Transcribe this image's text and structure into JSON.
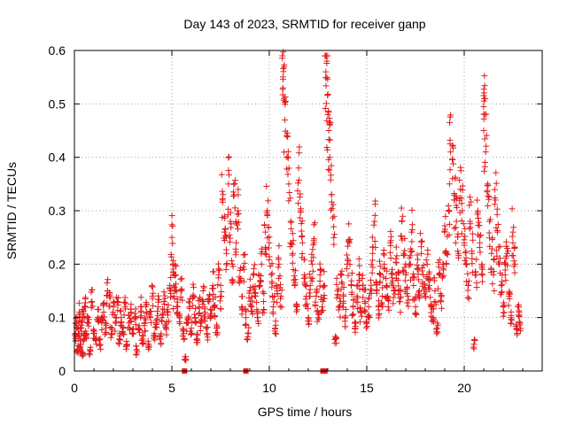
{
  "chart_data": {
    "type": "scatter",
    "title": "Day 143 of 2023, SRMTID for receiver ganp",
    "xlabel": "GPS time / hours",
    "ylabel": "SRMTID / TECUs",
    "xlim": [
      0,
      24
    ],
    "ylim": [
      0,
      0.6
    ],
    "x_ticks": [
      0,
      5,
      10,
      15,
      20
    ],
    "x_tick_labels": [
      "0",
      "5",
      "10",
      "15",
      "20"
    ],
    "y_ticks": [
      0,
      0.1,
      0.2,
      0.3,
      0.4,
      0.5,
      0.6
    ],
    "y_tick_labels": [
      "0",
      "0.1",
      "0.2",
      "0.3",
      "0.4",
      "0.5",
      "0.6"
    ],
    "grid": true,
    "marker": "+",
    "color": "#e41a1c",
    "baseline_markers_x": [
      5.65,
      8.8,
      12.75,
      12.85
    ],
    "series": [
      {
        "name": "SRMTID",
        "points": [
          [
            0.05,
            0.06
          ],
          [
            0.1,
            0.09
          ],
          [
            0.15,
            0.04
          ],
          [
            0.2,
            0.07
          ],
          [
            0.25,
            0.11
          ],
          [
            0.3,
            0.05
          ],
          [
            0.35,
            0.08
          ],
          [
            0.4,
            0.03
          ],
          [
            0.45,
            0.1
          ],
          [
            0.5,
            0.06
          ],
          [
            0.55,
            0.12
          ],
          [
            0.6,
            0.07
          ],
          [
            0.7,
            0.09
          ],
          [
            0.8,
            0.04
          ],
          [
            0.9,
            0.13
          ],
          [
            1.0,
            0.07
          ],
          [
            1.1,
            0.06
          ],
          [
            1.2,
            0.1
          ],
          [
            1.3,
            0.05
          ],
          [
            1.4,
            0.09
          ],
          [
            1.5,
            0.11
          ],
          [
            1.6,
            0.08
          ],
          [
            1.7,
            0.15
          ],
          [
            1.8,
            0.14
          ],
          [
            1.9,
            0.07
          ],
          [
            2.0,
            0.12
          ],
          [
            2.1,
            0.09
          ],
          [
            2.2,
            0.13
          ],
          [
            2.3,
            0.06
          ],
          [
            2.4,
            0.1
          ],
          [
            2.5,
            0.08
          ],
          [
            2.6,
            0.12
          ],
          [
            2.7,
            0.05
          ],
          [
            2.8,
            0.09
          ],
          [
            2.9,
            0.11
          ],
          [
            3.0,
            0.07
          ],
          [
            3.1,
            0.1
          ],
          [
            3.2,
            0.04
          ],
          [
            3.3,
            0.08
          ],
          [
            3.4,
            0.12
          ],
          [
            3.5,
            0.06
          ],
          [
            3.6,
            0.09
          ],
          [
            3.7,
            0.11
          ],
          [
            3.8,
            0.05
          ],
          [
            3.9,
            0.1
          ],
          [
            4.0,
            0.14
          ],
          [
            4.1,
            0.07
          ],
          [
            4.2,
            0.09
          ],
          [
            4.3,
            0.12
          ],
          [
            4.4,
            0.06
          ],
          [
            4.5,
            0.1
          ],
          [
            4.6,
            0.13
          ],
          [
            4.7,
            0.08
          ],
          [
            4.8,
            0.11
          ],
          [
            4.9,
            0.16
          ],
          [
            5.0,
            0.25
          ],
          [
            5.05,
            0.2
          ],
          [
            5.1,
            0.14
          ],
          [
            5.2,
            0.18
          ],
          [
            5.3,
            0.12
          ],
          [
            5.4,
            0.1
          ],
          [
            5.5,
            0.15
          ],
          [
            5.6,
            0.07
          ],
          [
            5.7,
            0.02
          ],
          [
            5.8,
            0.09
          ],
          [
            5.9,
            0.12
          ],
          [
            6.0,
            0.08
          ],
          [
            6.1,
            0.14
          ],
          [
            6.2,
            0.1
          ],
          [
            6.3,
            0.06
          ],
          [
            6.4,
            0.12
          ],
          [
            6.5,
            0.09
          ],
          [
            6.6,
            0.15
          ],
          [
            6.7,
            0.11
          ],
          [
            6.8,
            0.07
          ],
          [
            6.9,
            0.13
          ],
          [
            7.0,
            0.1
          ],
          [
            7.1,
            0.16
          ],
          [
            7.2,
            0.12
          ],
          [
            7.3,
            0.08
          ],
          [
            7.4,
            0.18
          ],
          [
            7.5,
            0.14
          ],
          [
            7.6,
            0.32
          ],
          [
            7.7,
            0.26
          ],
          [
            7.8,
            0.22
          ],
          [
            7.9,
            0.35
          ],
          [
            8.0,
            0.28
          ],
          [
            8.1,
            0.2
          ],
          [
            8.2,
            0.33
          ],
          [
            8.3,
            0.24
          ],
          [
            8.4,
            0.3
          ],
          [
            8.5,
            0.17
          ],
          [
            8.6,
            0.12
          ],
          [
            8.7,
            0.19
          ],
          [
            8.8,
            0.1
          ],
          [
            8.9,
            0.07
          ],
          [
            9.0,
            0.15
          ],
          [
            9.1,
            0.12
          ],
          [
            9.2,
            0.18
          ],
          [
            9.3,
            0.14
          ],
          [
            9.4,
            0.1
          ],
          [
            9.5,
            0.16
          ],
          [
            9.6,
            0.2
          ],
          [
            9.7,
            0.13
          ],
          [
            9.8,
            0.26
          ],
          [
            9.9,
            0.3
          ],
          [
            10.0,
            0.24
          ],
          [
            10.1,
            0.18
          ],
          [
            10.2,
            0.12
          ],
          [
            10.3,
            0.08
          ],
          [
            10.4,
            0.15
          ],
          [
            10.5,
            0.2
          ],
          [
            10.6,
            0.14
          ],
          [
            10.7,
            0.53
          ],
          [
            10.75,
            0.51
          ],
          [
            10.8,
            0.47
          ],
          [
            10.9,
            0.4
          ],
          [
            11.0,
            0.35
          ],
          [
            11.1,
            0.28
          ],
          [
            11.2,
            0.22
          ],
          [
            11.3,
            0.16
          ],
          [
            11.4,
            0.12
          ],
          [
            11.5,
            0.38
          ],
          [
            11.6,
            0.3
          ],
          [
            11.7,
            0.24
          ],
          [
            11.8,
            0.18
          ],
          [
            11.9,
            0.14
          ],
          [
            12.0,
            0.1
          ],
          [
            12.1,
            0.16
          ],
          [
            12.2,
            0.2
          ],
          [
            12.3,
            0.24
          ],
          [
            12.4,
            0.14
          ],
          [
            12.5,
            0.1
          ],
          [
            12.6,
            0.18
          ],
          [
            12.7,
            0.12
          ],
          [
            12.8,
            0.16
          ],
          [
            12.9,
            0.56
          ],
          [
            12.95,
            0.58
          ],
          [
            13.0,
            0.48
          ],
          [
            13.05,
            0.45
          ],
          [
            13.1,
            0.4
          ],
          [
            13.2,
            0.33
          ],
          [
            13.3,
            0.27
          ],
          [
            13.4,
            0.06
          ],
          [
            13.5,
            0.15
          ],
          [
            13.6,
            0.12
          ],
          [
            13.7,
            0.18
          ],
          [
            13.8,
            0.14
          ],
          [
            13.9,
            0.1
          ],
          [
            14.0,
            0.2
          ],
          [
            14.1,
            0.24
          ],
          [
            14.2,
            0.16
          ],
          [
            14.3,
            0.12
          ],
          [
            14.4,
            0.08
          ],
          [
            14.5,
            0.14
          ],
          [
            14.6,
            0.18
          ],
          [
            14.7,
            0.11
          ],
          [
            14.8,
            0.16
          ],
          [
            14.9,
            0.13
          ],
          [
            15.0,
            0.09
          ],
          [
            15.1,
            0.12
          ],
          [
            15.2,
            0.17
          ],
          [
            15.3,
            0.22
          ],
          [
            15.4,
            0.28
          ],
          [
            15.5,
            0.15
          ],
          [
            15.6,
            0.12
          ],
          [
            15.7,
            0.18
          ],
          [
            15.8,
            0.14
          ],
          [
            15.9,
            0.2
          ],
          [
            16.0,
            0.16
          ],
          [
            16.1,
            0.12
          ],
          [
            16.2,
            0.24
          ],
          [
            16.3,
            0.19
          ],
          [
            16.4,
            0.15
          ],
          [
            16.5,
            0.21
          ],
          [
            16.6,
            0.17
          ],
          [
            16.7,
            0.13
          ],
          [
            16.8,
            0.28
          ],
          [
            16.9,
            0.22
          ],
          [
            17.0,
            0.18
          ],
          [
            17.1,
            0.14
          ],
          [
            17.2,
            0.2
          ],
          [
            17.3,
            0.26
          ],
          [
            17.4,
            0.16
          ],
          [
            17.5,
            0.12
          ],
          [
            17.6,
            0.19
          ],
          [
            17.7,
            0.15
          ],
          [
            17.8,
            0.22
          ],
          [
            17.9,
            0.18
          ],
          [
            18.0,
            0.14
          ],
          [
            18.1,
            0.2
          ],
          [
            18.2,
            0.16
          ],
          [
            18.3,
            0.12
          ],
          [
            18.4,
            0.1
          ],
          [
            18.5,
            0.15
          ],
          [
            18.6,
            0.08
          ],
          [
            18.7,
            0.18
          ],
          [
            18.8,
            0.13
          ],
          [
            18.9,
            0.2
          ],
          [
            19.0,
            0.26
          ],
          [
            19.1,
            0.22
          ],
          [
            19.2,
            0.3
          ],
          [
            19.3,
            0.41
          ],
          [
            19.4,
            0.36
          ],
          [
            19.5,
            0.32
          ],
          [
            19.6,
            0.28
          ],
          [
            19.7,
            0.22
          ],
          [
            19.8,
            0.34
          ],
          [
            19.9,
            0.3
          ],
          [
            20.0,
            0.24
          ],
          [
            20.1,
            0.2
          ],
          [
            20.2,
            0.16
          ],
          [
            20.3,
            0.28
          ],
          [
            20.4,
            0.22
          ],
          [
            20.5,
            0.05
          ],
          [
            20.6,
            0.18
          ],
          [
            20.7,
            0.3
          ],
          [
            20.8,
            0.24
          ],
          [
            20.9,
            0.2
          ],
          [
            21.0,
            0.45
          ],
          [
            21.05,
            0.48
          ],
          [
            21.1,
            0.41
          ],
          [
            21.2,
            0.35
          ],
          [
            21.3,
            0.28
          ],
          [
            21.4,
            0.22
          ],
          [
            21.5,
            0.18
          ],
          [
            21.6,
            0.32
          ],
          [
            21.7,
            0.26
          ],
          [
            21.8,
            0.2
          ],
          [
            21.9,
            0.16
          ],
          [
            22.0,
            0.12
          ],
          [
            22.1,
            0.18
          ],
          [
            22.2,
            0.22
          ],
          [
            22.3,
            0.14
          ],
          [
            22.4,
            0.1
          ],
          [
            22.5,
            0.26
          ],
          [
            22.6,
            0.2
          ],
          [
            22.7,
            0.08
          ],
          [
            22.8,
            0.12
          ],
          [
            22.85,
            0.09
          ]
        ]
      }
    ]
  }
}
